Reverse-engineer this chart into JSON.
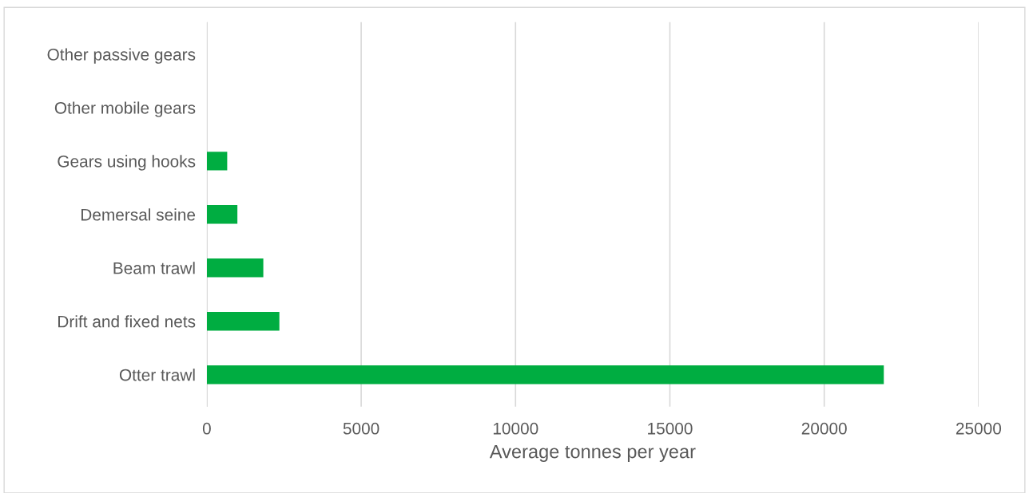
{
  "chart_data": {
    "type": "bar",
    "orientation": "horizontal",
    "categories": [
      "Other passive gears",
      "Other mobile gears",
      "Gears using hooks",
      "Demersal seine",
      "Beam trawl",
      "Drift and fixed nets",
      "Otter trawl"
    ],
    "values": [
      0,
      0,
      660,
      990,
      1830,
      2350,
      21930
    ],
    "color": "#00ad41",
    "xlabel": "Average tonnes per year",
    "xlim": [
      0,
      25000
    ],
    "xticks": [
      0,
      5000,
      10000,
      15000,
      20000,
      25000
    ],
    "grid": "x"
  }
}
